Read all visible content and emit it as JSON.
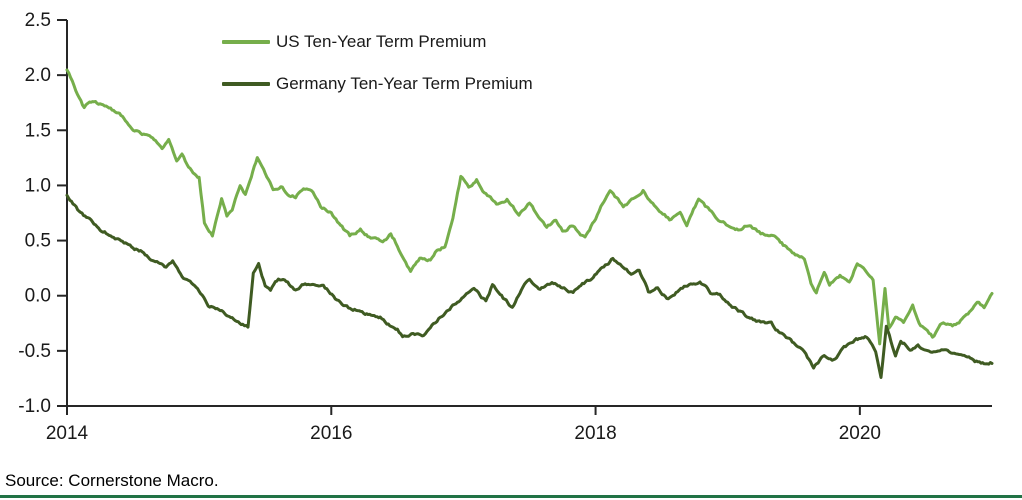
{
  "chart_data": {
    "type": "line",
    "title": "",
    "grid": false,
    "legend_position": "top-inside-left",
    "x_axis": {
      "range": [
        2014,
        2021
      ],
      "ticks": [
        {
          "value": 2014,
          "label": "2014"
        },
        {
          "value": 2016,
          "label": "2016"
        },
        {
          "value": 2018,
          "label": "2018"
        },
        {
          "value": 2020,
          "label": "2020"
        }
      ]
    },
    "y_axis": {
      "range": [
        -1.0,
        2.5
      ],
      "ticks": [
        {
          "value": 2.5,
          "label": "2.5"
        },
        {
          "value": 2.0,
          "label": "2.0"
        },
        {
          "value": 1.5,
          "label": "1.5"
        },
        {
          "value": 1.0,
          "label": "1.0"
        },
        {
          "value": 0.5,
          "label": "0.5"
        },
        {
          "value": 0.0,
          "label": "0.0"
        },
        {
          "value": -0.5,
          "label": "-0.5"
        },
        {
          "value": -1.0,
          "label": "-1.0"
        }
      ]
    },
    "legend": {
      "entries": [
        {
          "label": "US Ten-Year Term Premium",
          "color": "#76AE4B"
        },
        {
          "label": "Germany Ten-Year Term Premium",
          "color": "#3F5B22"
        }
      ]
    },
    "series": [
      {
        "name": "US Ten-Year Term Premium",
        "color": "#76AE4B",
        "points": [
          [
            2014.0,
            2.05
          ],
          [
            2014.04,
            1.95
          ],
          [
            2014.08,
            1.82
          ],
          [
            2014.13,
            1.7
          ],
          [
            2014.17,
            1.76
          ],
          [
            2014.25,
            1.74
          ],
          [
            2014.33,
            1.7
          ],
          [
            2014.42,
            1.62
          ],
          [
            2014.5,
            1.52
          ],
          [
            2014.58,
            1.47
          ],
          [
            2014.67,
            1.4
          ],
          [
            2014.72,
            1.34
          ],
          [
            2014.77,
            1.41
          ],
          [
            2014.83,
            1.22
          ],
          [
            2014.87,
            1.27
          ],
          [
            2014.92,
            1.15
          ],
          [
            2015.0,
            1.08
          ],
          [
            2015.04,
            0.66
          ],
          [
            2015.1,
            0.56
          ],
          [
            2015.17,
            0.9
          ],
          [
            2015.21,
            0.74
          ],
          [
            2015.25,
            0.78
          ],
          [
            2015.31,
            1.02
          ],
          [
            2015.35,
            0.93
          ],
          [
            2015.44,
            1.26
          ],
          [
            2015.5,
            1.12
          ],
          [
            2015.56,
            0.96
          ],
          [
            2015.63,
            1.0
          ],
          [
            2015.67,
            0.93
          ],
          [
            2015.73,
            0.91
          ],
          [
            2015.79,
            0.98
          ],
          [
            2015.85,
            0.95
          ],
          [
            2015.92,
            0.82
          ],
          [
            2016.0,
            0.76
          ],
          [
            2016.07,
            0.64
          ],
          [
            2016.14,
            0.54
          ],
          [
            2016.22,
            0.61
          ],
          [
            2016.3,
            0.53
          ],
          [
            2016.39,
            0.49
          ],
          [
            2016.45,
            0.56
          ],
          [
            2016.5,
            0.46
          ],
          [
            2016.6,
            0.23
          ],
          [
            2016.67,
            0.34
          ],
          [
            2016.75,
            0.33
          ],
          [
            2016.8,
            0.41
          ],
          [
            2016.86,
            0.45
          ],
          [
            2016.92,
            0.72
          ],
          [
            2016.98,
            1.08
          ],
          [
            2017.04,
            0.97
          ],
          [
            2017.1,
            1.05
          ],
          [
            2017.17,
            0.93
          ],
          [
            2017.25,
            0.84
          ],
          [
            2017.33,
            0.88
          ],
          [
            2017.42,
            0.74
          ],
          [
            2017.5,
            0.86
          ],
          [
            2017.58,
            0.68
          ],
          [
            2017.63,
            0.6
          ],
          [
            2017.7,
            0.69
          ],
          [
            2017.75,
            0.58
          ],
          [
            2017.83,
            0.64
          ],
          [
            2017.92,
            0.53
          ],
          [
            2018.0,
            0.7
          ],
          [
            2018.04,
            0.82
          ],
          [
            2018.11,
            0.94
          ],
          [
            2018.17,
            0.86
          ],
          [
            2018.21,
            0.8
          ],
          [
            2018.31,
            0.9
          ],
          [
            2018.36,
            0.97
          ],
          [
            2018.42,
            0.84
          ],
          [
            2018.47,
            0.77
          ],
          [
            2018.56,
            0.69
          ],
          [
            2018.64,
            0.77
          ],
          [
            2018.69,
            0.66
          ],
          [
            2018.78,
            0.88
          ],
          [
            2018.83,
            0.8
          ],
          [
            2018.92,
            0.7
          ],
          [
            2019.0,
            0.64
          ],
          [
            2019.08,
            0.6
          ],
          [
            2019.15,
            0.64
          ],
          [
            2019.25,
            0.56
          ],
          [
            2019.33,
            0.57
          ],
          [
            2019.42,
            0.46
          ],
          [
            2019.5,
            0.39
          ],
          [
            2019.58,
            0.33
          ],
          [
            2019.63,
            0.1
          ],
          [
            2019.67,
            0.02
          ],
          [
            2019.73,
            0.22
          ],
          [
            2019.77,
            0.1
          ],
          [
            2019.85,
            0.18
          ],
          [
            2019.92,
            0.13
          ],
          [
            2019.98,
            0.3
          ],
          [
            2020.04,
            0.25
          ],
          [
            2020.1,
            0.14
          ],
          [
            2020.15,
            -0.45
          ],
          [
            2020.19,
            0.05
          ],
          [
            2020.22,
            -0.3
          ],
          [
            2020.27,
            -0.2
          ],
          [
            2020.33,
            -0.26
          ],
          [
            2020.4,
            -0.11
          ],
          [
            2020.46,
            -0.28
          ],
          [
            2020.55,
            -0.38
          ],
          [
            2020.62,
            -0.25
          ],
          [
            2020.7,
            -0.28
          ],
          [
            2020.75,
            -0.25
          ],
          [
            2020.83,
            -0.15
          ],
          [
            2020.9,
            -0.06
          ],
          [
            2020.94,
            -0.1
          ],
          [
            2021.0,
            0.02
          ]
        ]
      },
      {
        "name": "Germany Ten-Year Term Premium",
        "color": "#3F5B22",
        "points": [
          [
            2014.0,
            0.9
          ],
          [
            2014.08,
            0.77
          ],
          [
            2014.17,
            0.69
          ],
          [
            2014.25,
            0.61
          ],
          [
            2014.33,
            0.55
          ],
          [
            2014.42,
            0.5
          ],
          [
            2014.5,
            0.44
          ],
          [
            2014.58,
            0.4
          ],
          [
            2014.67,
            0.29
          ],
          [
            2014.75,
            0.26
          ],
          [
            2014.8,
            0.3
          ],
          [
            2014.87,
            0.15
          ],
          [
            2014.92,
            0.13
          ],
          [
            2015.0,
            0.04
          ],
          [
            2015.08,
            -0.1
          ],
          [
            2015.17,
            -0.14
          ],
          [
            2015.25,
            -0.21
          ],
          [
            2015.33,
            -0.26
          ],
          [
            2015.37,
            -0.28
          ],
          [
            2015.41,
            0.2
          ],
          [
            2015.45,
            0.3
          ],
          [
            2015.5,
            0.1
          ],
          [
            2015.54,
            0.05
          ],
          [
            2015.6,
            0.15
          ],
          [
            2015.67,
            0.12
          ],
          [
            2015.73,
            0.05
          ],
          [
            2015.79,
            0.1
          ],
          [
            2015.86,
            0.08
          ],
          [
            2015.94,
            0.1
          ],
          [
            2016.03,
            -0.02
          ],
          [
            2016.13,
            -0.11
          ],
          [
            2016.21,
            -0.13
          ],
          [
            2016.29,
            -0.17
          ],
          [
            2016.37,
            -0.2
          ],
          [
            2016.42,
            -0.26
          ],
          [
            2016.5,
            -0.3
          ],
          [
            2016.54,
            -0.37
          ],
          [
            2016.62,
            -0.33
          ],
          [
            2016.7,
            -0.36
          ],
          [
            2016.75,
            -0.28
          ],
          [
            2016.85,
            -0.16
          ],
          [
            2016.92,
            -0.08
          ],
          [
            2017.0,
            -0.01
          ],
          [
            2017.08,
            0.07
          ],
          [
            2017.17,
            -0.05
          ],
          [
            2017.22,
            0.1
          ],
          [
            2017.3,
            -0.02
          ],
          [
            2017.37,
            -0.1
          ],
          [
            2017.45,
            0.08
          ],
          [
            2017.5,
            0.15
          ],
          [
            2017.58,
            0.05
          ],
          [
            2017.67,
            0.13
          ],
          [
            2017.75,
            0.06
          ],
          [
            2017.83,
            0.04
          ],
          [
            2017.9,
            0.12
          ],
          [
            2017.96,
            0.14
          ],
          [
            2018.04,
            0.24
          ],
          [
            2018.13,
            0.34
          ],
          [
            2018.21,
            0.25
          ],
          [
            2018.27,
            0.19
          ],
          [
            2018.33,
            0.23
          ],
          [
            2018.4,
            0.03
          ],
          [
            2018.47,
            0.06
          ],
          [
            2018.55,
            -0.04
          ],
          [
            2018.62,
            0.04
          ],
          [
            2018.72,
            0.11
          ],
          [
            2018.79,
            0.13
          ],
          [
            2018.87,
            0.03
          ],
          [
            2018.94,
            0.01
          ],
          [
            2019.0,
            -0.05
          ],
          [
            2019.08,
            -0.13
          ],
          [
            2019.17,
            -0.21
          ],
          [
            2019.25,
            -0.25
          ],
          [
            2019.33,
            -0.27
          ],
          [
            2019.42,
            -0.36
          ],
          [
            2019.5,
            -0.44
          ],
          [
            2019.58,
            -0.51
          ],
          [
            2019.65,
            -0.66
          ],
          [
            2019.73,
            -0.53
          ],
          [
            2019.79,
            -0.59
          ],
          [
            2019.88,
            -0.48
          ],
          [
            2019.96,
            -0.41
          ],
          [
            2020.04,
            -0.38
          ],
          [
            2020.08,
            -0.43
          ],
          [
            2020.12,
            -0.52
          ],
          [
            2020.16,
            -0.73
          ],
          [
            2020.2,
            -0.27
          ],
          [
            2020.27,
            -0.55
          ],
          [
            2020.31,
            -0.4
          ],
          [
            2020.38,
            -0.47
          ],
          [
            2020.44,
            -0.44
          ],
          [
            2020.5,
            -0.5
          ],
          [
            2020.58,
            -0.53
          ],
          [
            2020.63,
            -0.49
          ],
          [
            2020.7,
            -0.54
          ],
          [
            2020.79,
            -0.52
          ],
          [
            2020.87,
            -0.58
          ],
          [
            2020.94,
            -0.61
          ],
          [
            2021.0,
            -0.6
          ]
        ]
      }
    ]
  },
  "source_note": "Source: Cornerstone Macro.",
  "colors": {
    "axis": "#262626",
    "text": "#1a1a1a",
    "bottom_rule": "#217346",
    "background": "#FFFFFF"
  }
}
